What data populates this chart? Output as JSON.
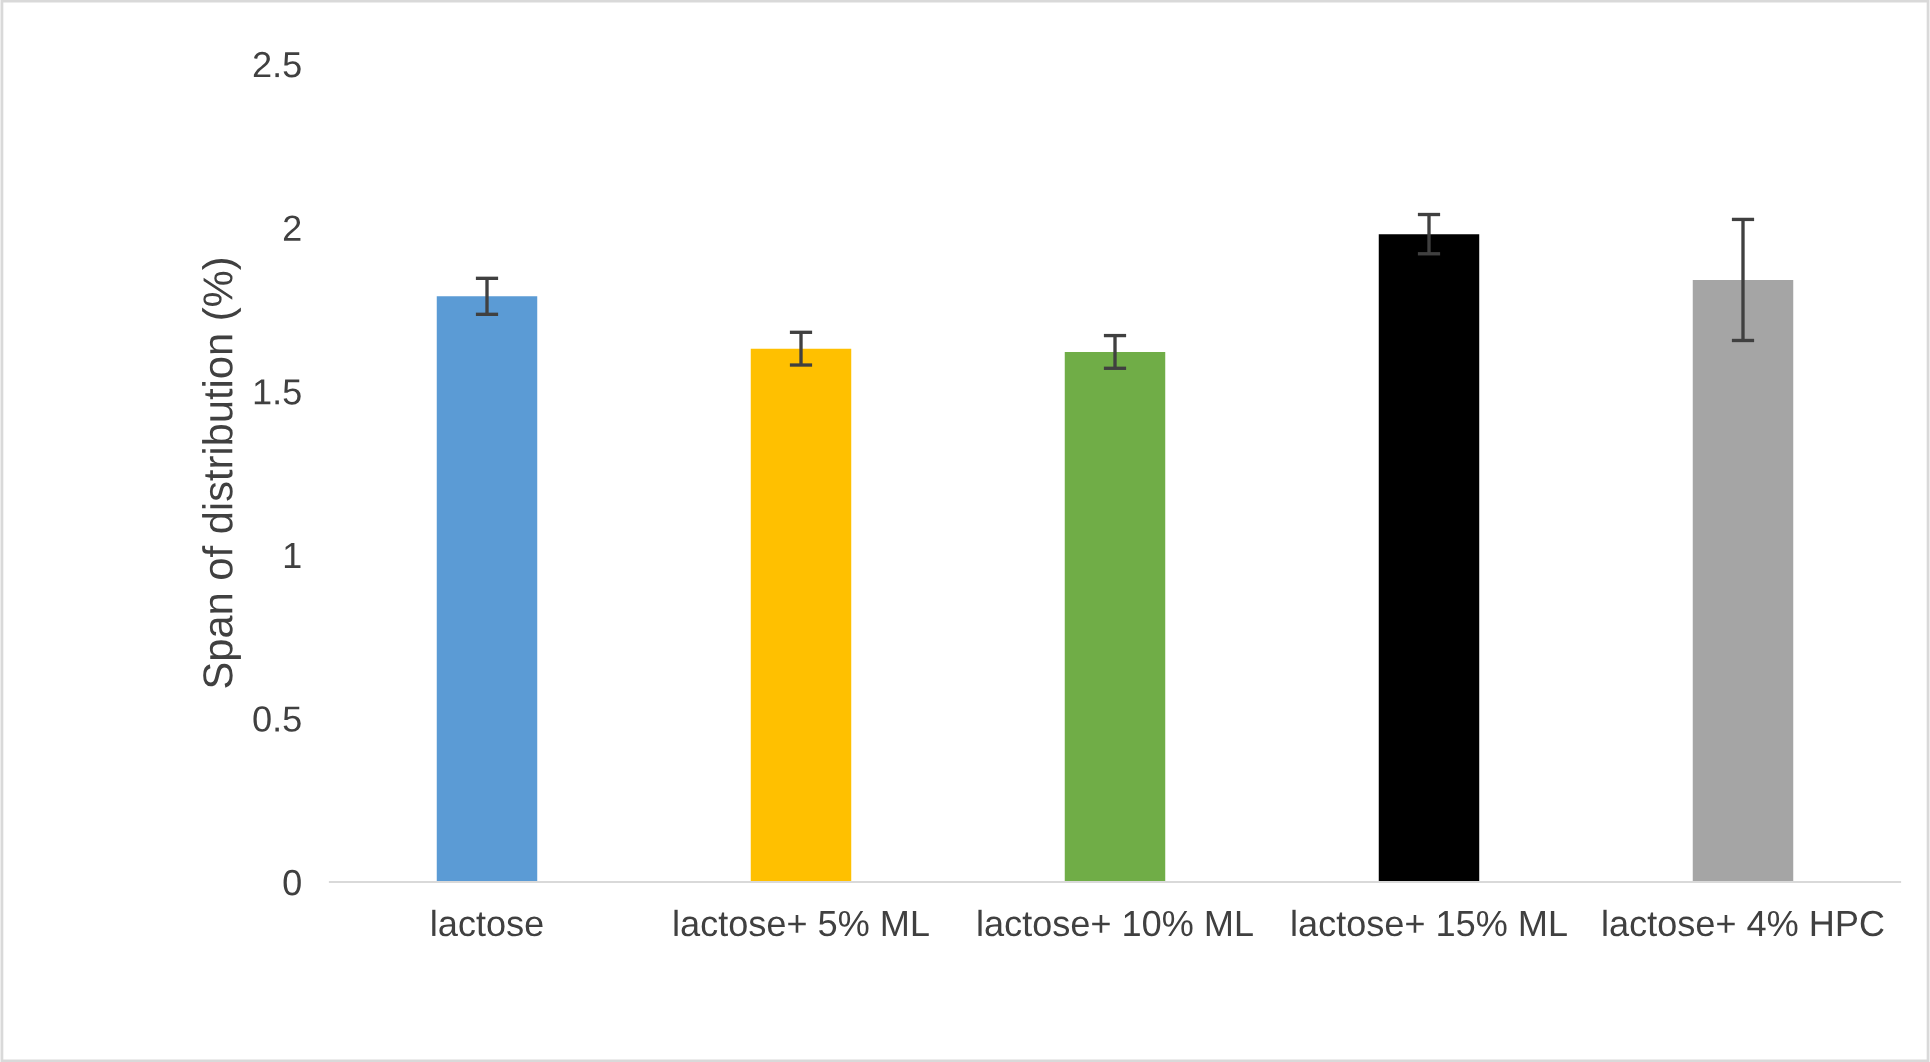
{
  "chart_data": {
    "type": "bar",
    "ylabel": "Span of distribution (%)",
    "categories": [
      "lactose",
      "lactose+ 5% ML",
      "lactose+ 10% ML",
      "lactose+ 15% ML",
      "lactose+ 4% HPC"
    ],
    "values": [
      1.79,
      1.63,
      1.62,
      1.98,
      1.84
    ],
    "errors": [
      0.055,
      0.05,
      0.05,
      0.06,
      0.185
    ],
    "colors": [
      "#5b9bd5",
      "#ffc000",
      "#70ad47",
      "#000000",
      "#a5a5a5"
    ],
    "ylim": [
      0,
      2.5
    ],
    "yticks": [
      0,
      0.5,
      1,
      1.5,
      2,
      2.5
    ],
    "grid": false
  }
}
